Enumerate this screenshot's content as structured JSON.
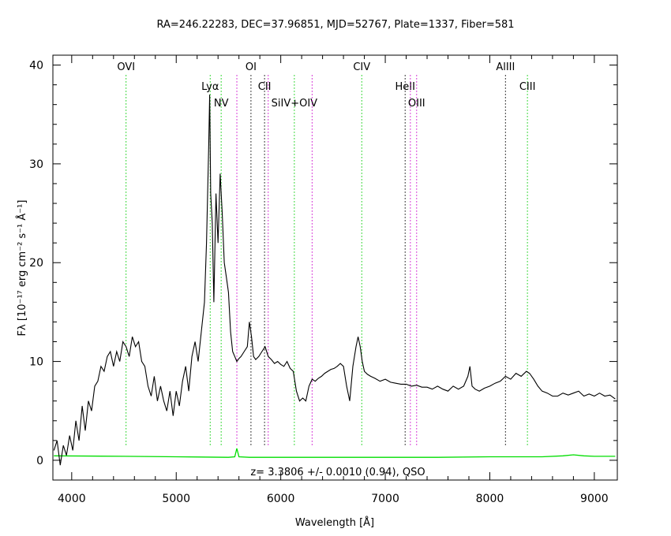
{
  "chart_data": {
    "type": "line",
    "title": "RA=246.22283, DEC=37.96851, MJD=52767, Plate=1337, Fiber=581",
    "xlabel": "Wavelength [Å]",
    "ylabel": "Fλ [10⁻¹⁷ erg cm⁻² s⁻¹ Å⁻¹]",
    "xlim": [
      3820,
      9220
    ],
    "ylim": [
      -2,
      41
    ],
    "xticks": [
      "4000",
      "5000",
      "6000",
      "7000",
      "8000",
      "9000"
    ],
    "yticks": [
      "0",
      "10",
      "20",
      "30",
      "40"
    ],
    "redshift_label": "z= 3.3806 +/- 0.0010 (0.94), QSO",
    "grid": false,
    "colors": {
      "flux": "#000000",
      "error": "#00dd00",
      "green_lines": "#00cc00",
      "black_lines": "#000000",
      "magenta_lines": "#cc00cc"
    },
    "emission_lines": [
      {
        "name": "OVI",
        "wavelength": 4520,
        "color": "green",
        "label_y": 39.5
      },
      {
        "name": "Lyα",
        "wavelength": 5325,
        "color": "green",
        "label_y": 37.5
      },
      {
        "name": "NV",
        "wavelength": 5430,
        "color": "green",
        "label_y": 35.8
      },
      {
        "name": "",
        "wavelength": 5580,
        "color": "magenta",
        "label_y": null
      },
      {
        "name": "OI",
        "wavelength": 5715,
        "color": "black",
        "label_y": 39.5
      },
      {
        "name": "CII",
        "wavelength": 5845,
        "color": "black",
        "label_y": 37.5
      },
      {
        "name": "",
        "wavelength": 5880,
        "color": "magenta",
        "label_y": null
      },
      {
        "name": "SiIV+OIV",
        "wavelength": 6130,
        "color": "green",
        "label_y": 35.8
      },
      {
        "name": "",
        "wavelength": 6300,
        "color": "magenta",
        "label_y": null
      },
      {
        "name": "CIV",
        "wavelength": 6775,
        "color": "green",
        "label_y": 39.5
      },
      {
        "name": "HeII",
        "wavelength": 7190,
        "color": "black",
        "label_y": 37.5
      },
      {
        "name": "",
        "wavelength": 7240,
        "color": "magenta",
        "label_y": null
      },
      {
        "name": "OIII",
        "wavelength": 7300,
        "color": "magenta",
        "label_y": 35.8
      },
      {
        "name": "AlIII",
        "wavelength": 8150,
        "color": "black",
        "label_y": 39.5
      },
      {
        "name": "CIII",
        "wavelength": 8360,
        "color": "green",
        "label_y": 37.5
      }
    ],
    "series": [
      {
        "name": "flux",
        "x": [
          3830,
          3860,
          3890,
          3920,
          3950,
          3980,
          4010,
          4040,
          4070,
          4100,
          4130,
          4160,
          4190,
          4220,
          4250,
          4280,
          4310,
          4340,
          4370,
          4400,
          4430,
          4460,
          4490,
          4520,
          4550,
          4580,
          4610,
          4640,
          4670,
          4700,
          4730,
          4760,
          4790,
          4820,
          4850,
          4880,
          4910,
          4940,
          4970,
          5000,
          5030,
          5060,
          5090,
          5120,
          5150,
          5180,
          5210,
          5240,
          5270,
          5290,
          5310,
          5320,
          5330,
          5345,
          5360,
          5380,
          5400,
          5420,
          5440,
          5460,
          5480,
          5500,
          5520,
          5540,
          5560,
          5580,
          5600,
          5620,
          5650,
          5680,
          5700,
          5720,
          5740,
          5760,
          5790,
          5820,
          5850,
          5880,
          5910,
          5940,
          5970,
          6000,
          6030,
          6060,
          6090,
          6120,
          6150,
          6180,
          6210,
          6240,
          6270,
          6300,
          6330,
          6360,
          6390,
          6420,
          6450,
          6480,
          6510,
          6540,
          6570,
          6600,
          6630,
          6660,
          6690,
          6720,
          6740,
          6760,
          6780,
          6800,
          6830,
          6860,
          6900,
          6950,
          7000,
          7050,
          7100,
          7150,
          7200,
          7250,
          7300,
          7350,
          7400,
          7450,
          7500,
          7550,
          7600,
          7650,
          7700,
          7750,
          7790,
          7810,
          7830,
          7860,
          7900,
          7950,
          8000,
          8050,
          8100,
          8150,
          8200,
          8250,
          8300,
          8350,
          8380,
          8420,
          8460,
          8500,
          8550,
          8600,
          8650,
          8700,
          8750,
          8800,
          8850,
          8900,
          8950,
          9000,
          9050,
          9100,
          9150,
          9200
        ],
        "values": [
          1.0,
          2.0,
          -0.5,
          1.5,
          0.5,
          2.5,
          1.0,
          4.0,
          2.0,
          5.5,
          3.0,
          6.0,
          5.0,
          7.5,
          8.0,
          9.5,
          9.0,
          10.5,
          11.0,
          9.5,
          11.0,
          10.0,
          12.0,
          11.5,
          10.5,
          12.5,
          11.5,
          12.0,
          10.0,
          9.5,
          7.5,
          6.5,
          8.5,
          6.0,
          7.5,
          6.0,
          5.0,
          7.0,
          4.5,
          7.0,
          5.5,
          8.0,
          9.5,
          7.0,
          10.5,
          12.0,
          10.0,
          13.0,
          16.0,
          22.0,
          31.5,
          37.0,
          27.0,
          24.0,
          16.0,
          27.0,
          22.0,
          29.0,
          25.0,
          20.0,
          18.5,
          17.0,
          13.0,
          11.0,
          10.5,
          10.0,
          10.3,
          10.5,
          11.0,
          11.5,
          14.0,
          12.5,
          10.5,
          10.2,
          10.5,
          11.0,
          11.5,
          10.5,
          10.2,
          9.8,
          10.0,
          9.7,
          9.5,
          10.0,
          9.3,
          9.0,
          7.0,
          6.0,
          6.3,
          6.0,
          7.5,
          8.2,
          8.0,
          8.3,
          8.5,
          8.8,
          9.0,
          9.2,
          9.3,
          9.5,
          9.8,
          9.5,
          7.5,
          6.0,
          9.5,
          11.5,
          12.5,
          11.5,
          10.0,
          9.0,
          8.7,
          8.5,
          8.3,
          8.0,
          8.2,
          7.9,
          7.8,
          7.7,
          7.7,
          7.5,
          7.6,
          7.4,
          7.4,
          7.2,
          7.5,
          7.2,
          7.0,
          7.5,
          7.2,
          7.5,
          8.5,
          9.5,
          7.5,
          7.2,
          7.0,
          7.3,
          7.5,
          7.8,
          8.0,
          8.5,
          8.2,
          8.8,
          8.5,
          9.0,
          8.8,
          8.2,
          7.5,
          7.0,
          6.8,
          6.5,
          6.5,
          6.8,
          6.6,
          6.8,
          7.0,
          6.5,
          6.7,
          6.5,
          6.8,
          6.5,
          6.6,
          6.2
        ]
      },
      {
        "name": "error",
        "x": [
          3830,
          4500,
          5000,
          5500,
          5560,
          5580,
          5600,
          5700,
          6000,
          6500,
          7000,
          7500,
          8000,
          8500,
          8700,
          8800,
          8900,
          9000,
          9200
        ],
        "values": [
          0.45,
          0.4,
          0.35,
          0.3,
          0.35,
          1.2,
          0.35,
          0.3,
          0.3,
          0.3,
          0.3,
          0.3,
          0.35,
          0.35,
          0.45,
          0.55,
          0.45,
          0.4,
          0.4
        ]
      }
    ]
  }
}
